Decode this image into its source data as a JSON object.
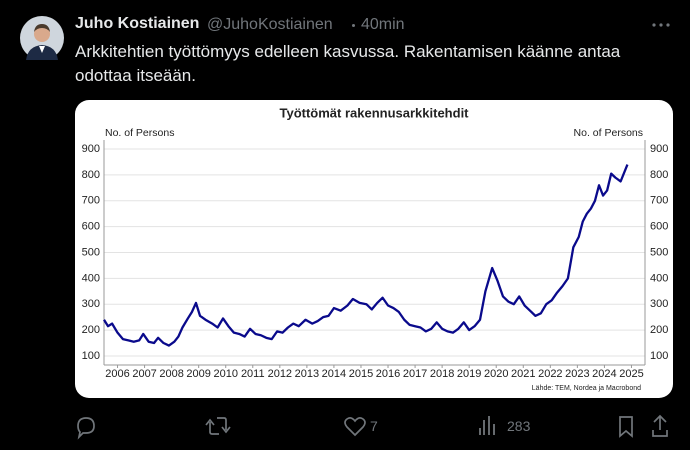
{
  "header": {
    "name": "Juho Kostiainen",
    "handle": "@JuhoKostiainen",
    "time": "40min"
  },
  "tweet": {
    "text": "Arkkitehtien työttömyys edelleen kasvussa. Rakentamisen käänne antaa odottaa itseään."
  },
  "chart_data": {
    "type": "line",
    "title": "Työttömät rakennusarkkitehdit",
    "ylabel": "No. of Persons",
    "y2label": "No. of Persons",
    "source": "Lähde: TEM, Nordea ja Macrobond",
    "color": "#0a0a8c",
    "grid": true,
    "x": [
      2006.0,
      2006.15,
      2006.3,
      2006.5,
      2006.7,
      2006.9,
      2007.1,
      2007.3,
      2007.45,
      2007.65,
      2007.85,
      2008.0,
      2008.2,
      2008.4,
      2008.6,
      2008.75,
      2008.9,
      2009.1,
      2009.25,
      2009.4,
      2009.55,
      2009.75,
      2010.0,
      2010.2,
      2010.4,
      2010.6,
      2010.8,
      2011.0,
      2011.2,
      2011.4,
      2011.6,
      2011.8,
      2012.0,
      2012.2,
      2012.4,
      2012.6,
      2012.8,
      2013.0,
      2013.2,
      2013.45,
      2013.7,
      2013.9,
      2014.1,
      2014.3,
      2014.5,
      2014.75,
      2015.0,
      2015.2,
      2015.45,
      2015.7,
      2015.9,
      2016.1,
      2016.3,
      2016.5,
      2016.7,
      2016.9,
      2017.1,
      2017.3,
      2017.5,
      2017.7,
      2017.9,
      2018.1,
      2018.3,
      2018.5,
      2018.7,
      2018.9,
      2019.1,
      2019.3,
      2019.5,
      2019.7,
      2019.9,
      2020.1,
      2020.35,
      2020.55,
      2020.75,
      2020.95,
      2021.15,
      2021.35,
      2021.55,
      2021.75,
      2021.95,
      2022.15,
      2022.35,
      2022.55,
      2022.75,
      2022.95,
      2023.15,
      2023.35,
      2023.55,
      2023.7,
      2023.85,
      2024.0,
      2024.15,
      2024.3,
      2024.45,
      2024.6,
      2024.75,
      2024.9,
      2025.1,
      2025.35
    ],
    "values": [
      240,
      215,
      225,
      190,
      165,
      160,
      155,
      160,
      185,
      155,
      150,
      170,
      150,
      140,
      155,
      175,
      210,
      245,
      270,
      305,
      255,
      240,
      225,
      210,
      245,
      215,
      190,
      185,
      175,
      205,
      185,
      180,
      170,
      165,
      195,
      190,
      210,
      225,
      215,
      240,
      225,
      235,
      250,
      255,
      285,
      275,
      295,
      320,
      305,
      300,
      280,
      305,
      325,
      295,
      285,
      270,
      240,
      220,
      215,
      210,
      195,
      205,
      230,
      205,
      195,
      190,
      205,
      230,
      200,
      215,
      240,
      350,
      440,
      390,
      330,
      310,
      300,
      330,
      295,
      275,
      255,
      265,
      300,
      315,
      345,
      370,
      400,
      520,
      560,
      620,
      650,
      670,
      700,
      760,
      720,
      740,
      805,
      790,
      775,
      840
    ],
    "xlim": [
      2006,
      2026
    ],
    "xticks": [
      {
        "value": 2006.5,
        "label": "2006"
      },
      {
        "value": 2007.5,
        "label": "2007"
      },
      {
        "value": 2008.5,
        "label": "2008"
      },
      {
        "value": 2009.5,
        "label": "2009"
      },
      {
        "value": 2010.5,
        "label": "2010"
      },
      {
        "value": 2011.5,
        "label": "2011"
      },
      {
        "value": 2012.5,
        "label": "2012"
      },
      {
        "value": 2013.5,
        "label": "2013"
      },
      {
        "value": 2014.5,
        "label": "2014"
      },
      {
        "value": 2015.5,
        "label": "2015"
      },
      {
        "value": 2016.5,
        "label": "2016"
      },
      {
        "value": 2017.5,
        "label": "2017"
      },
      {
        "value": 2018.5,
        "label": "2018"
      },
      {
        "value": 2019.5,
        "label": "2019"
      },
      {
        "value": 2020.5,
        "label": "2020"
      },
      {
        "value": 2021.5,
        "label": "2021"
      },
      {
        "value": 2022.5,
        "label": "2022"
      },
      {
        "value": 2023.5,
        "label": "2023"
      },
      {
        "value": 2024.5,
        "label": "2024"
      },
      {
        "value": 2025.5,
        "label": "2025"
      }
    ],
    "ylim": [
      65,
      935
    ],
    "yticks": [
      100,
      200,
      300,
      400,
      500,
      600,
      700,
      800,
      900
    ]
  },
  "actions": {
    "likes": "7",
    "views": "283"
  }
}
